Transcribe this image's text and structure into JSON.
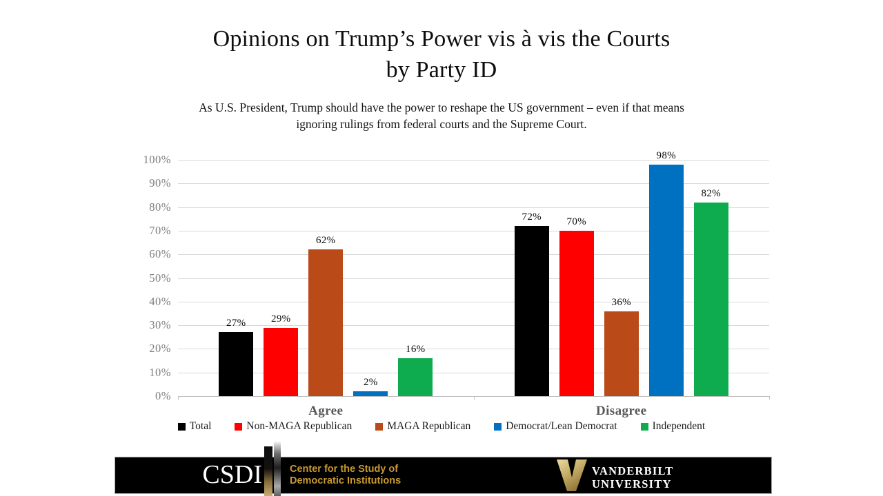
{
  "slide": {
    "title": {
      "line1": "Opinions on Trump’s Power vis à vis the Courts",
      "line2": "by Party ID"
    },
    "subtitle": {
      "line1": "As U.S. President, Trump should have the power to reshape the US government – even if that means",
      "line2": "ignoring rulings from federal courts and the Supreme Court."
    }
  },
  "chart_data": {
    "type": "bar",
    "title": "Opinions on Trump’s Power vis à vis the Courts by Party ID",
    "subtitle": "As U.S. President, Trump should have the power to reshape the US government – even if that means ignoring rulings from federal courts and the Supreme Court.",
    "categories": [
      "Agree",
      "Disagree"
    ],
    "series": [
      {
        "name": "Total",
        "color": "#000000",
        "values": [
          27,
          72
        ]
      },
      {
        "name": "Non-MAGA Republican",
        "color": "#ff0000",
        "values": [
          29,
          70
        ]
      },
      {
        "name": "MAGA Republican",
        "color": "#ba4a18",
        "values": [
          62,
          36
        ]
      },
      {
        "name": "Democrat/Lean Democrat",
        "color": "#0070c0",
        "values": [
          2,
          98
        ]
      },
      {
        "name": "Independent",
        "color": "#0fac4f",
        "values": [
          16,
          82
        ]
      }
    ],
    "ylim": [
      0,
      100
    ],
    "ytick_step": 10,
    "ytick_labels": [
      "0%",
      "10%",
      "20%",
      "30%",
      "40%",
      "50%",
      "60%",
      "70%",
      "80%",
      "90%",
      "100%"
    ],
    "data_label_suffix": "%",
    "grid": true,
    "legend_position": "bottom",
    "gridline_color": "#d9d9d9",
    "axis_line_color": "#bfbfbf",
    "axis_label_color": "#7f7f7f",
    "category_label_color": "#595959"
  },
  "footer": {
    "csdi_acronym": "CSDI",
    "csdi_name_line1": "Center for the Study of",
    "csdi_name_line2": "Democratic Institutions",
    "csdi_gold": "#c9992f",
    "vanderbilt_line1": "VANDERBILT",
    "vanderbilt_line2": "UNIVERSITY",
    "vanderbilt_gold": "#b3a369",
    "bar_color": "#000000"
  }
}
